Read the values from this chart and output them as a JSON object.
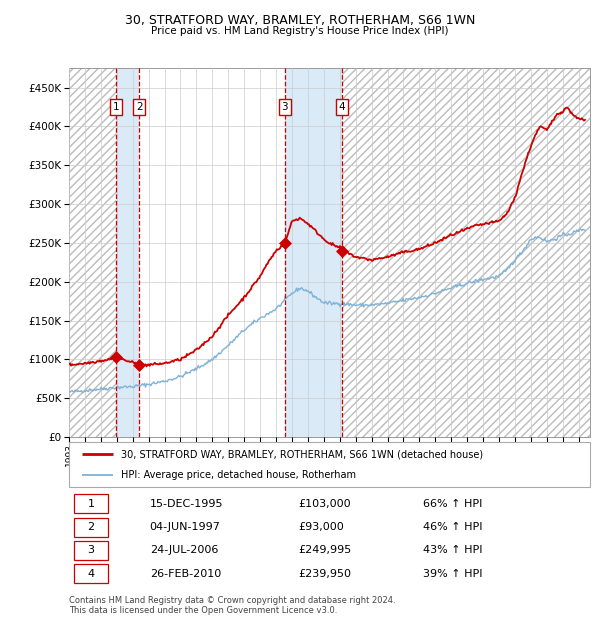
{
  "title1": "30, STRATFORD WAY, BRAMLEY, ROTHERHAM, S66 1WN",
  "title2": "Price paid vs. HM Land Registry's House Price Index (HPI)",
  "legend_line1": "30, STRATFORD WAY, BRAMLEY, ROTHERHAM, S66 1WN (detached house)",
  "legend_line2": "HPI: Average price, detached house, Rotherham",
  "footer1": "Contains HM Land Registry data © Crown copyright and database right 2024.",
  "footer2": "This data is licensed under the Open Government Licence v3.0.",
  "transactions": [
    {
      "num": 1,
      "date": "15-DEC-1995",
      "price": 103000,
      "pct": "66%",
      "dir": "↑",
      "x_year": 1995.96
    },
    {
      "num": 2,
      "date": "04-JUN-1997",
      "price": 93000,
      "pct": "46%",
      "dir": "↑",
      "x_year": 1997.42
    },
    {
      "num": 3,
      "date": "24-JUL-2006",
      "price": 249995,
      "pct": "43%",
      "dir": "↑",
      "x_year": 2006.56
    },
    {
      "num": 4,
      "date": "26-FEB-2010",
      "price": 239950,
      "pct": "39%",
      "dir": "↑",
      "x_year": 2010.15
    }
  ],
  "hpi_color": "#7fb2d8",
  "price_color": "#cc0000",
  "marker_color": "#cc0000",
  "shade_color": "#daeaf7",
  "grid_color": "#cccccc",
  "ylim": [
    0,
    475000
  ],
  "yticks": [
    0,
    50000,
    100000,
    150000,
    200000,
    250000,
    300000,
    350000,
    400000,
    450000
  ],
  "xmin": 1993.0,
  "xmax": 2025.7
}
